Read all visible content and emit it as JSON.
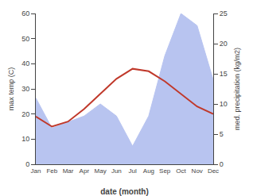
{
  "chart_data": {
    "type": "line",
    "categories": [
      "Jan",
      "Feb",
      "Mar",
      "Apr",
      "May",
      "Jun",
      "Jul",
      "Aug",
      "Sep",
      "Oct",
      "Nov",
      "Dec"
    ],
    "series": [
      {
        "type": "area",
        "axis": "y2",
        "color": "#b8c4f0",
        "values": [
          11,
          6,
          7,
          8,
          10,
          8,
          3,
          8,
          18,
          25,
          23,
          14
        ]
      },
      {
        "type": "line",
        "color": "#c0392b",
        "values": [
          19,
          15,
          17,
          22,
          28,
          34,
          38,
          37,
          33,
          28,
          23,
          20
        ]
      }
    ],
    "xlabel": "date (month)",
    "ylabel": "max temp (C)",
    "y2label": "med. precipitation (kg/m2)",
    "ylim": [
      0,
      60
    ],
    "yticks": [
      0,
      10,
      20,
      30,
      40,
      50,
      60
    ],
    "y2lim": [
      0,
      25
    ],
    "y2ticks": [
      0,
      5,
      10,
      15,
      20,
      25
    ],
    "grid": false
  }
}
